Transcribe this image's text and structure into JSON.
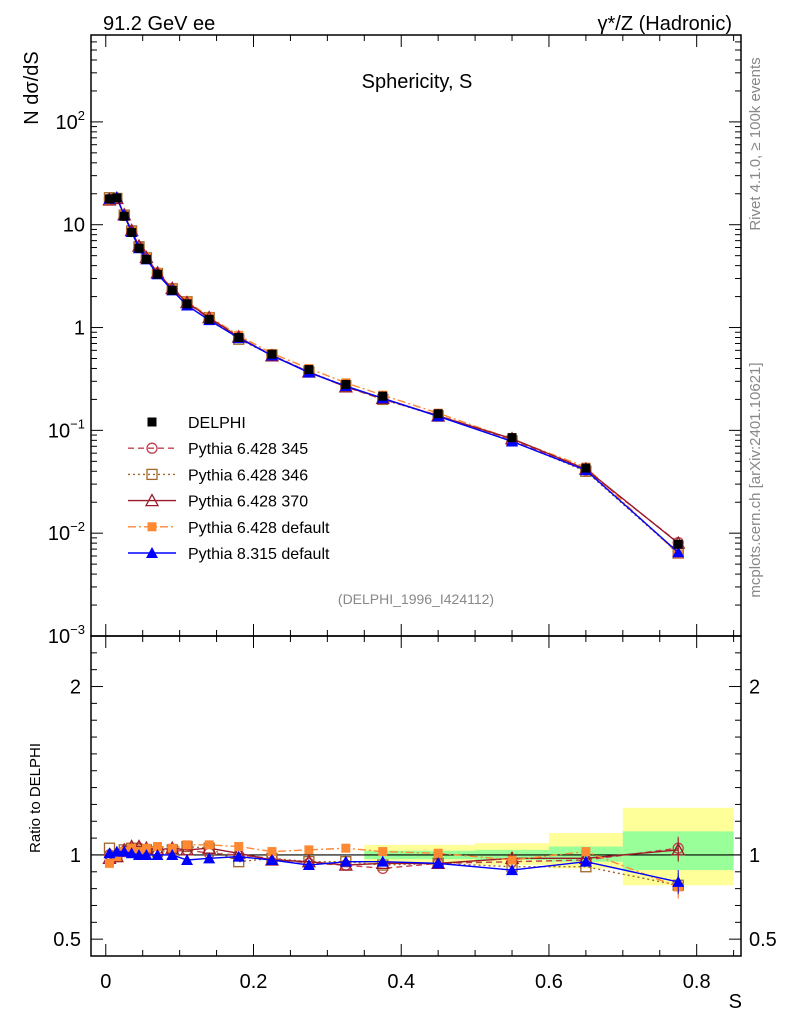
{
  "header": {
    "left": "91.2 GeV ee",
    "right": "γ*/Z (Hadronic)"
  },
  "side": {
    "rivet": "Rivet 4.1.0, ≥ 100k events",
    "site": "mcplots.cern.ch [arXiv:2401.10621]"
  },
  "chart_data": [
    {
      "type": "line",
      "panel": "main",
      "title": "Sphericity, S",
      "ylabel": "N  dσ/dS",
      "xlabel": "S",
      "yscale": "log",
      "ylim": [
        0.001,
        700
      ],
      "xlim": [
        -0.02,
        0.86
      ],
      "reference": "(DELPHI_1996_I424112)",
      "yticks": [
        {
          "v": 0.001,
          "b": "10",
          "e": "−3"
        },
        {
          "v": 0.01,
          "b": "10",
          "e": "−2"
        },
        {
          "v": 0.1,
          "b": "10",
          "e": "−1"
        },
        {
          "v": 1,
          "b": "1",
          "e": ""
        },
        {
          "v": 10,
          "b": "10",
          "e": ""
        },
        {
          "v": 100,
          "b": "10",
          "e": "2"
        }
      ],
      "x": [
        0.005,
        0.015,
        0.025,
        0.035,
        0.045,
        0.055,
        0.07,
        0.09,
        0.11,
        0.14,
        0.18,
        0.225,
        0.275,
        0.325,
        0.375,
        0.45,
        0.55,
        0.65,
        0.775
      ],
      "series": [
        {
          "name": "DELPHI",
          "style": "data",
          "values": [
            17.8,
            18.2,
            12.1,
            8.4,
            5.9,
            4.6,
            3.3,
            2.3,
            1.7,
            1.2,
            0.8,
            0.55,
            0.39,
            0.28,
            0.215,
            0.145,
            0.085,
            0.043,
            0.0078
          ]
        },
        {
          "name": "Pythia 6.428 345",
          "style": "p345",
          "values": [
            17.8,
            18.2,
            12.3,
            8.6,
            6.1,
            4.7,
            3.4,
            2.35,
            1.75,
            1.22,
            0.8,
            0.54,
            0.37,
            0.265,
            0.2,
            0.14,
            0.081,
            0.041,
            0.0081
          ]
        },
        {
          "name": "Pythia 6.428 346",
          "style": "p346",
          "values": [
            18.3,
            18.0,
            12.4,
            8.7,
            6.1,
            4.75,
            3.35,
            2.38,
            1.78,
            1.25,
            0.77,
            0.54,
            0.37,
            0.27,
            0.2,
            0.138,
            0.079,
            0.04,
            0.0064
          ]
        },
        {
          "name": "Pythia 6.428 370",
          "style": "p370",
          "values": [
            17.4,
            18.0,
            12.5,
            8.8,
            6.2,
            4.8,
            3.4,
            2.4,
            1.75,
            1.25,
            0.81,
            0.53,
            0.37,
            0.265,
            0.205,
            0.138,
            0.083,
            0.042,
            0.008
          ]
        },
        {
          "name": "Pythia 6.428 default",
          "style": "p6def",
          "values": [
            17.0,
            18.0,
            12.4,
            8.7,
            6.0,
            4.8,
            3.45,
            2.4,
            1.8,
            1.27,
            0.84,
            0.56,
            0.4,
            0.29,
            0.22,
            0.147,
            0.082,
            0.044,
            0.0063
          ]
        },
        {
          "name": "Pythia 8.315 default",
          "style": "p8",
          "values": [
            17.9,
            18.6,
            12.3,
            8.5,
            5.9,
            4.6,
            3.3,
            2.3,
            1.64,
            1.18,
            0.79,
            0.535,
            0.365,
            0.27,
            0.205,
            0.137,
            0.078,
            0.041,
            0.0065
          ]
        }
      ]
    },
    {
      "type": "line",
      "panel": "ratio",
      "ylabel": "Ratio to DELPHI",
      "xlabel": "S",
      "ylim": [
        0.4,
        2.3
      ],
      "yticks": [
        {
          "v": 0.5,
          "label": "0.5"
        },
        {
          "v": 1,
          "label": "1"
        },
        {
          "v": 2,
          "label": "2"
        }
      ],
      "xticks": [
        {
          "v": 0,
          "label": "0"
        },
        {
          "v": 0.2,
          "label": "0.2"
        },
        {
          "v": 0.4,
          "label": "0.4"
        },
        {
          "v": 0.6,
          "label": "0.6"
        },
        {
          "v": 0.8,
          "label": "0.8"
        }
      ],
      "bands": [
        {
          "x0": 0.35,
          "x1": 0.5,
          "y0": 0.95,
          "y1": 1.06,
          "inner": [
            0.975,
            1.025
          ]
        },
        {
          "x0": 0.5,
          "x1": 0.6,
          "y0": 0.94,
          "y1": 1.07,
          "inner": [
            0.97,
            1.03
          ]
        },
        {
          "x0": 0.6,
          "x1": 0.7,
          "y0": 0.92,
          "y1": 1.13,
          "inner": [
            0.96,
            1.05
          ]
        },
        {
          "x0": 0.7,
          "x1": 0.85,
          "y0": 0.82,
          "y1": 1.28,
          "inner": [
            0.91,
            1.14
          ]
        }
      ],
      "x": [
        0.005,
        0.015,
        0.025,
        0.035,
        0.045,
        0.055,
        0.07,
        0.09,
        0.11,
        0.14,
        0.18,
        0.225,
        0.275,
        0.325,
        0.375,
        0.45,
        0.55,
        0.65,
        0.775
      ],
      "series": [
        {
          "name": "Pythia 6.428 345",
          "style": "p345",
          "values": [
            1.0,
            1.0,
            1.02,
            1.03,
            1.04,
            1.02,
            1.01,
            1.02,
            1.03,
            1.01,
            1.0,
            0.98,
            0.95,
            0.94,
            0.92,
            0.95,
            0.96,
            0.97,
            1.04
          ]
        },
        {
          "name": "Pythia 6.428 346",
          "style": "p346",
          "values": [
            1.04,
            0.99,
            1.03,
            1.04,
            1.03,
            1.03,
            1.02,
            1.03,
            1.05,
            1.04,
            0.96,
            0.98,
            0.96,
            0.96,
            0.94,
            0.95,
            0.93,
            0.93,
            0.82
          ]
        },
        {
          "name": "Pythia 6.428 370",
          "style": "p370",
          "values": [
            0.98,
            0.99,
            1.03,
            1.05,
            1.05,
            1.04,
            1.03,
            1.04,
            1.03,
            1.04,
            1.01,
            0.97,
            0.96,
            0.94,
            0.95,
            0.95,
            0.98,
            0.98,
            1.03
          ]
        },
        {
          "name": "Pythia 6.428 default",
          "style": "p6def",
          "values": [
            0.95,
            0.99,
            1.02,
            1.04,
            1.02,
            1.04,
            1.05,
            1.04,
            1.06,
            1.06,
            1.05,
            1.02,
            1.03,
            1.04,
            1.02,
            1.01,
            0.97,
            1.02,
            0.81
          ]
        },
        {
          "name": "Pythia 8.315 default",
          "style": "p8",
          "values": [
            1.01,
            1.02,
            1.02,
            1.01,
            1.0,
            1.0,
            1.0,
            1.0,
            0.97,
            0.98,
            0.99,
            0.97,
            0.94,
            0.96,
            0.96,
            0.95,
            0.91,
            0.96,
            0.84
          ]
        }
      ]
    }
  ]
}
